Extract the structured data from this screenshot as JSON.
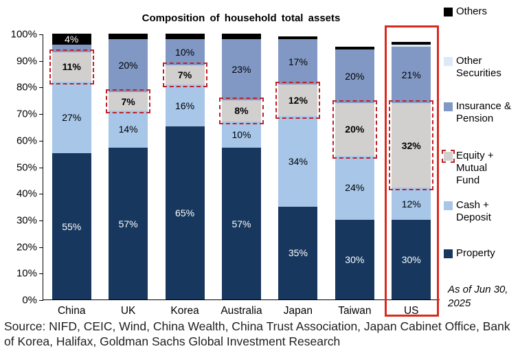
{
  "title": "Composition of household total assets",
  "annotation": "As of Jun 30, 2025",
  "source": "Source: NIFD, CEIC, Wind, China Wealth, China Trust Association, Japan Cabinet Office, Bank of Korea, Halifax, Goldman Sachs Global Investment Research",
  "highlight": {
    "category": "US",
    "box_color": "#da291c",
    "dashed_color": "#bf2026"
  },
  "y_axis": {
    "ticks": [
      "100%",
      "90%",
      "80%",
      "70%",
      "60%",
      "50%",
      "40%",
      "30%",
      "20%",
      "10%",
      "0%"
    ]
  },
  "chart_data": {
    "type": "bar",
    "stacked": true,
    "grid": false,
    "legend_position": "right",
    "ylim": [
      0,
      100
    ],
    "categories": [
      "China",
      "UK",
      "Korea",
      "Australia",
      "Japan",
      "Taiwan",
      "US"
    ],
    "series": [
      {
        "name": "Property",
        "color": "#17375e",
        "label_color": "#ffffff",
        "values": [
          55,
          57,
          65,
          57,
          35,
          30,
          30
        ],
        "labels": [
          "55%",
          "57%",
          "65%",
          "57%",
          "35%",
          "30%",
          "30%"
        ]
      },
      {
        "name": "Cash + Deposit",
        "color": "#a7c6e8",
        "label_color": "#000000",
        "values": [
          27,
          14,
          16,
          10,
          34,
          24,
          12
        ],
        "labels": [
          "27%",
          "14%",
          "16%",
          "10%",
          "34%",
          "24%",
          "12%"
        ]
      },
      {
        "name": "Equity + Mutual Fund",
        "color": "#d2cfcf",
        "label_color": "#000000",
        "bold_labels": true,
        "dashed_outline": true,
        "values": [
          11,
          7,
          7,
          8,
          12,
          20,
          32
        ],
        "labels": [
          "11%",
          "7%",
          "7%",
          "8%",
          "12%",
          "20%",
          "32%"
        ]
      },
      {
        "name": "Insurance & Pension",
        "color": "#8198c4",
        "label_color": "#000000",
        "values": [
          3,
          20,
          10,
          23,
          17,
          20,
          21
        ],
        "labels": [
          "",
          "20%",
          "10%",
          "23%",
          "17%",
          "20%",
          "21%"
        ]
      },
      {
        "name": "Other Securities",
        "color": "#dce9f6",
        "label_color": "#000000",
        "values": [
          0,
          0,
          0,
          0,
          0,
          0,
          1
        ],
        "labels": [
          "",
          "",
          "",
          "",
          "",
          "",
          ""
        ]
      },
      {
        "name": "Others",
        "color": "#000000",
        "label_color": "#ffffff",
        "values": [
          4,
          2,
          2,
          2,
          1,
          1,
          1
        ],
        "labels": [
          "4%",
          "",
          "",
          "",
          "",
          "",
          ""
        ]
      }
    ]
  }
}
